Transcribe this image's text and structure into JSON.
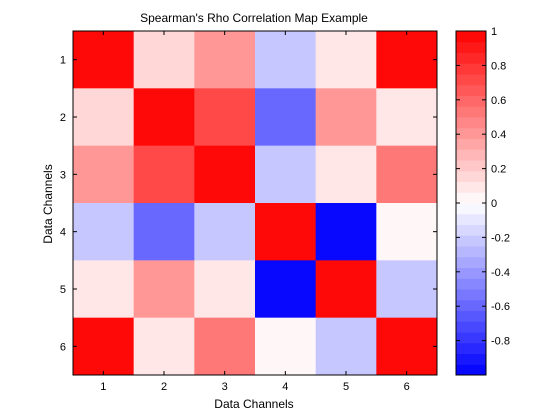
{
  "chart_data": {
    "type": "heatmap",
    "title": "Spearman's Rho Correlation Map Example",
    "xlabel": "Data Channels",
    "ylabel": "Data Channels",
    "x_categories": [
      "1",
      "2",
      "3",
      "4",
      "5",
      "6"
    ],
    "y_categories": [
      "1",
      "2",
      "3",
      "4",
      "5",
      "6"
    ],
    "values": [
      [
        1.0,
        0.17,
        0.4,
        -0.25,
        0.1,
        0.95
      ],
      [
        0.17,
        1.0,
        0.7,
        -0.6,
        0.4,
        0.1
      ],
      [
        0.4,
        0.7,
        1.0,
        -0.25,
        0.1,
        0.55
      ],
      [
        -0.25,
        -0.6,
        -0.25,
        1.0,
        -1.0,
        0.0
      ],
      [
        0.1,
        0.4,
        0.1,
        -1.0,
        1.0,
        -0.2
      ],
      [
        0.95,
        0.1,
        0.55,
        0.0,
        -0.2,
        1.0
      ]
    ],
    "color_range": [
      -1,
      1
    ],
    "colormap": "blue-white-red (32 levels)",
    "colorbar_ticks": [
      1,
      0.8,
      0.6,
      0.4,
      0.2,
      0,
      -0.2,
      -0.4,
      -0.6,
      -0.8
    ],
    "colorbar_tick_labels": [
      "1",
      "0.8",
      "0.6",
      "0.4",
      "0.2",
      "0",
      "-0.2",
      "-0.4",
      "-0.6",
      "-0.8"
    ],
    "colorbar_placement": "right",
    "grid": false
  }
}
